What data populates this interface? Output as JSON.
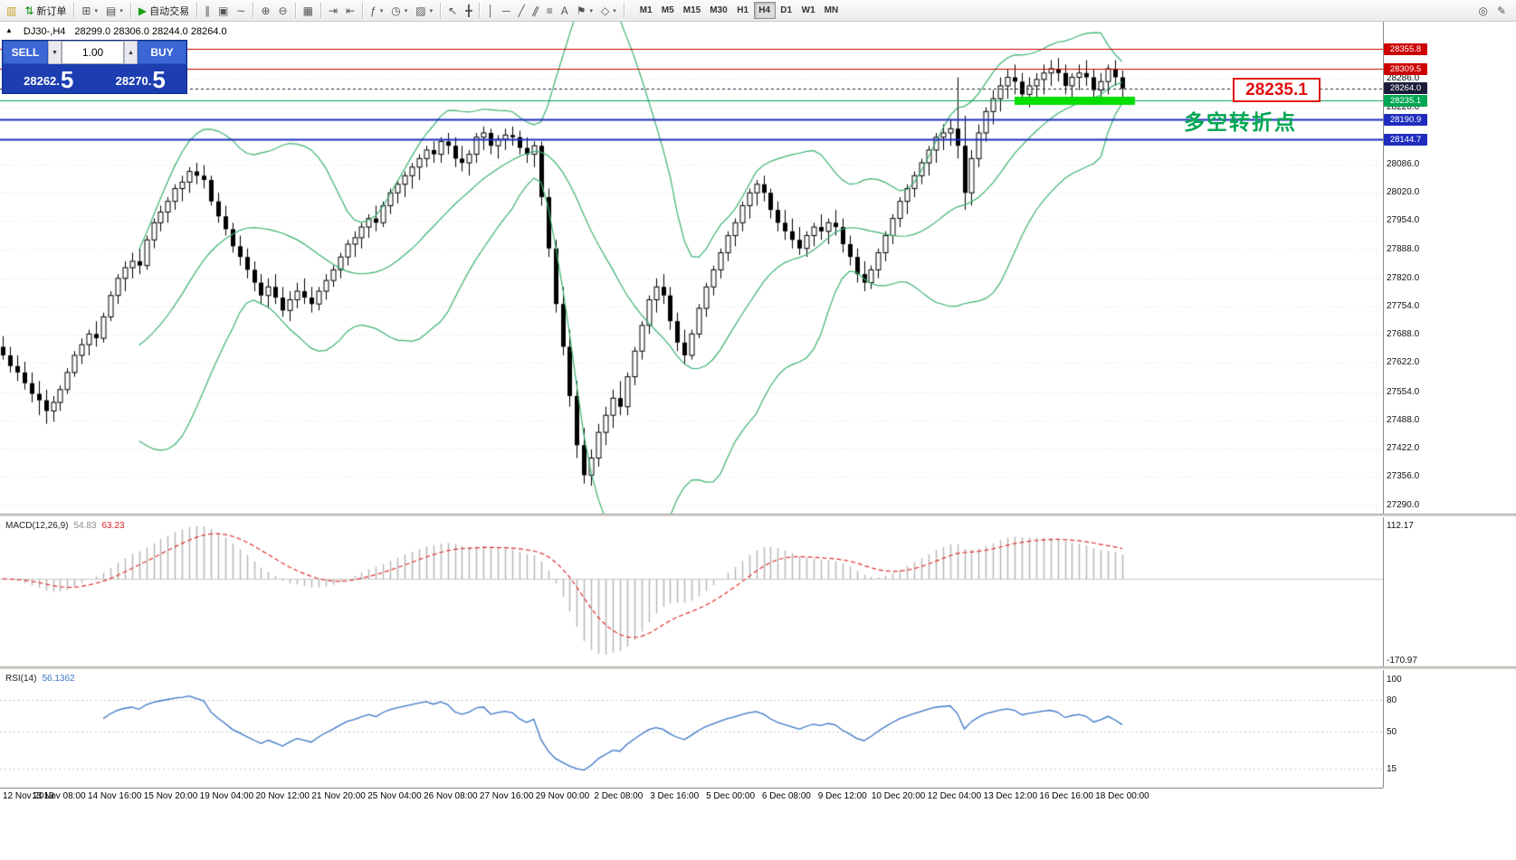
{
  "toolbar": {
    "items": [
      {
        "n": "app-button",
        "g": "▥",
        "c": "#c9a227"
      },
      {
        "n": "new-order-button",
        "g": "⇅",
        "c": "#0a8a0a",
        "l": "新订单"
      },
      {
        "s": 1
      },
      {
        "n": "new-chart-button",
        "g": "⊞",
        "caret": 1
      },
      {
        "n": "profiles-button",
        "g": "▤",
        "caret": 1
      },
      {
        "s": 1
      },
      {
        "n": "autotrading-button",
        "g": "▶",
        "c": "#18a018",
        "l": "自动交易"
      },
      {
        "s": 1
      },
      {
        "n": "bar-chart-button",
        "g": "∥"
      },
      {
        "n": "candlestick-chart-button",
        "g": "▣"
      },
      {
        "n": "line-chart-button",
        "g": "∼"
      },
      {
        "s": 1
      },
      {
        "n": "zoom-in-button",
        "g": "⊕"
      },
      {
        "n": "zoom-out-button",
        "g": "⊖"
      },
      {
        "s": 1
      },
      {
        "n": "tile-windows-button",
        "g": "▦"
      },
      {
        "s": 1
      },
      {
        "n": "auto-scroll-button",
        "g": "⇥"
      },
      {
        "n": "chart-shift-button",
        "g": "⇤"
      },
      {
        "s": 1
      },
      {
        "n": "indicators-button",
        "g": "ƒ",
        "caret": 1
      },
      {
        "n": "periods-button",
        "g": "◷",
        "caret": 1
      },
      {
        "n": "templates-button",
        "g": "▨",
        "caret": 1
      },
      {
        "s": 1
      },
      {
        "n": "cursor-button",
        "g": "↖"
      },
      {
        "n": "crosshair-button",
        "g": "╋"
      },
      {
        "s": 1
      },
      {
        "n": "vertical-line-button",
        "g": "│"
      },
      {
        "n": "horizontal-line-button",
        "g": "─"
      },
      {
        "n": "trendline-button",
        "g": "╱"
      },
      {
        "n": "channel-button",
        "g": "∥",
        "rot": 1
      },
      {
        "n": "fibonacci-button",
        "g": "≡"
      },
      {
        "n": "text-button",
        "g": "A"
      },
      {
        "n": "arrows-button",
        "g": "⚑",
        "caret": 1
      },
      {
        "n": "shapes-button",
        "g": "◇",
        "caret": 1
      },
      {
        "s": 1
      }
    ],
    "timeframes": {
      "options": [
        "M1",
        "M5",
        "M15",
        "M30",
        "H1",
        "H4",
        "D1",
        "W1",
        "MN"
      ],
      "active": "H4"
    },
    "right_items": [
      {
        "n": "search-button",
        "icon": "search-icon",
        "g": "◎"
      },
      {
        "n": "feedback-button",
        "icon": "pencil-icon",
        "g": "✎"
      }
    ]
  },
  "chart": {
    "symbol_title": "DJ30-,H4",
    "ohlc": "28299.0 28306.0 28244.0 28264.0"
  },
  "trade_panel": {
    "sell_label": "SELL",
    "buy_label": "BUY",
    "volume": "1.00",
    "sell_price_main": "28262.",
    "sell_price_big": "5",
    "buy_price_main": "28270.",
    "buy_price_big": "5"
  },
  "price_axis": {
    "ticks": [
      "28286.0",
      "28220.0",
      "28086.0",
      "28020.0",
      "27954.0",
      "27888.0",
      "27820.0",
      "27754.0",
      "27688.0",
      "27622.0",
      "27554.0",
      "27488.0",
      "27422.0",
      "27356.0",
      "27290.0"
    ]
  },
  "levels": [
    {
      "label": "28355.8",
      "price": 28355.8,
      "color": "#cc0000",
      "thickness": 1,
      "style": "solid",
      "role": "resistance"
    },
    {
      "label": "28309.5",
      "price": 28309.5,
      "color": "#cc0000",
      "thickness": 1,
      "style": "solid",
      "role": "resistance"
    },
    {
      "label": "28264.0",
      "price": 28264.0,
      "color": "#1c1c3a",
      "thickness": 1,
      "style": "dashed",
      "role": "last-price"
    },
    {
      "label": "28235.1",
      "price": 28235.1,
      "color": "#00a651",
      "thickness": 1,
      "style": "solid",
      "role": "pivot"
    },
    {
      "label": "28190.9",
      "price": 28190.9,
      "color": "#1f2dbe",
      "thickness": 2,
      "style": "solid",
      "role": "support"
    },
    {
      "label": "28144.7",
      "price": 28144.7,
      "color": "#1f2dbe",
      "thickness": 2,
      "style": "solid",
      "role": "support"
    }
  ],
  "annotations": {
    "pivot_price": "28235.1",
    "pivot_text": "多空转折点",
    "highlight_color": "#00dd00",
    "pivot_color": "#e01010",
    "pivot_text_color": "#00a651"
  },
  "macd_panel": {
    "title": "MACD(12,26,9)",
    "value_main": "54.83",
    "value_signal": "63.23",
    "axis_max": "112.17",
    "axis_min": "-170.97"
  },
  "rsi_panel": {
    "title": "RSI(14)",
    "value": "56.1362",
    "axis_labels": [
      100,
      80,
      50,
      15
    ],
    "levels": [
      80,
      50,
      15
    ]
  },
  "time_axis": {
    "labels": [
      "12 Nov 2019",
      "13 Nov 08:00",
      "14 Nov 16:00",
      "15 Nov 20:00",
      "19 Nov 04:00",
      "20 Nov 12:00",
      "21 Nov 20:00",
      "25 Nov 04:00",
      "26 Nov 08:00",
      "27 Nov 16:00",
      "29 Nov 00:00",
      "2 Dec 08:00",
      "3 Dec 16:00",
      "5 Dec 00:00",
      "6 Dec 08:00",
      "9 Dec 12:00",
      "10 Dec 20:00",
      "12 Dec 04:00",
      "13 Dec 12:00",
      "16 Dec 16:00",
      "18 Dec 00:00"
    ]
  },
  "chart_data": {
    "type": "candlestick",
    "symbol": "DJ30-",
    "timeframe": "H4",
    "ylim": [
      27270,
      28420
    ],
    "indicators": {
      "bollinger": {
        "period": 20,
        "deviation": 2
      },
      "macd": {
        "fast": 12,
        "slow": 26,
        "signal": 9
      },
      "rsi": {
        "period": 14
      }
    },
    "candles": [
      [
        27660,
        27685,
        27630,
        27640
      ],
      [
        27640,
        27660,
        27600,
        27615
      ],
      [
        27615,
        27640,
        27580,
        27600
      ],
      [
        27600,
        27625,
        27560,
        27575
      ],
      [
        27575,
        27600,
        27530,
        27550
      ],
      [
        27550,
        27580,
        27500,
        27535
      ],
      [
        27535,
        27560,
        27480,
        27510
      ],
      [
        27510,
        27545,
        27485,
        27530
      ],
      [
        27530,
        27570,
        27510,
        27560
      ],
      [
        27560,
        27610,
        27550,
        27600
      ],
      [
        27600,
        27650,
        27590,
        27640
      ],
      [
        27640,
        27680,
        27620,
        27665
      ],
      [
        27665,
        27700,
        27640,
        27690
      ],
      [
        27690,
        27720,
        27660,
        27680
      ],
      [
        27680,
        27740,
        27670,
        27730
      ],
      [
        27730,
        27790,
        27720,
        27780
      ],
      [
        27780,
        27830,
        27760,
        27820
      ],
      [
        27820,
        27860,
        27790,
        27845
      ],
      [
        27845,
        27880,
        27820,
        27860
      ],
      [
        27860,
        27890,
        27830,
        27850
      ],
      [
        27850,
        27920,
        27840,
        27910
      ],
      [
        27910,
        27960,
        27890,
        27950
      ],
      [
        27950,
        27990,
        27930,
        27975
      ],
      [
        27975,
        28010,
        27950,
        28000
      ],
      [
        28000,
        28040,
        27980,
        28030
      ],
      [
        28030,
        28060,
        28000,
        28045
      ],
      [
        28045,
        28080,
        28020,
        28070
      ],
      [
        28070,
        28090,
        28040,
        28060
      ],
      [
        28060,
        28085,
        28030,
        28050
      ],
      [
        28050,
        28060,
        27990,
        28000
      ],
      [
        28000,
        28020,
        27950,
        27965
      ],
      [
        27965,
        27990,
        27920,
        27935
      ],
      [
        27935,
        27950,
        27880,
        27895
      ],
      [
        27895,
        27920,
        27850,
        27870
      ],
      [
        27870,
        27890,
        27820,
        27840
      ],
      [
        27840,
        27860,
        27790,
        27810
      ],
      [
        27810,
        27830,
        27760,
        27780
      ],
      [
        27780,
        27820,
        27750,
        27800
      ],
      [
        27800,
        27830,
        27760,
        27775
      ],
      [
        27775,
        27800,
        27730,
        27745
      ],
      [
        27745,
        27790,
        27720,
        27770
      ],
      [
        27770,
        27810,
        27750,
        27790
      ],
      [
        27790,
        27820,
        27760,
        27775
      ],
      [
        27775,
        27800,
        27740,
        27760
      ],
      [
        27760,
        27800,
        27745,
        27790
      ],
      [
        27790,
        27830,
        27770,
        27815
      ],
      [
        27815,
        27850,
        27800,
        27840
      ],
      [
        27840,
        27880,
        27820,
        27870
      ],
      [
        27870,
        27910,
        27850,
        27900
      ],
      [
        27900,
        27930,
        27870,
        27915
      ],
      [
        27915,
        27950,
        27890,
        27940
      ],
      [
        27940,
        27970,
        27915,
        27960
      ],
      [
        27960,
        27990,
        27930,
        27950
      ],
      [
        27950,
        28000,
        27940,
        27990
      ],
      [
        27990,
        28030,
        27970,
        28020
      ],
      [
        28020,
        28050,
        27995,
        28040
      ],
      [
        28040,
        28070,
        28010,
        28060
      ],
      [
        28060,
        28090,
        28030,
        28080
      ],
      [
        28080,
        28110,
        28050,
        28100
      ],
      [
        28100,
        28130,
        28080,
        28120
      ],
      [
        28120,
        28140,
        28090,
        28110
      ],
      [
        28110,
        28150,
        28090,
        28140
      ],
      [
        28140,
        28160,
        28110,
        28130
      ],
      [
        28130,
        28150,
        28080,
        28100
      ],
      [
        28100,
        28130,
        28070,
        28090
      ],
      [
        28090,
        28120,
        28060,
        28110
      ],
      [
        28110,
        28160,
        28090,
        28150
      ],
      [
        28150,
        28175,
        28120,
        28160
      ],
      [
        28160,
        28170,
        28110,
        28130
      ],
      [
        28130,
        28155,
        28100,
        28145
      ],
      [
        28145,
        28170,
        28120,
        28155
      ],
      [
        28155,
        28175,
        28130,
        28150
      ],
      [
        28150,
        28165,
        28110,
        28125
      ],
      [
        28125,
        28150,
        28090,
        28110
      ],
      [
        28110,
        28140,
        28080,
        28130
      ],
      [
        28130,
        28140,
        27990,
        28010
      ],
      [
        28010,
        28030,
        27870,
        27890
      ],
      [
        27890,
        27910,
        27740,
        27760
      ],
      [
        27760,
        27800,
        27640,
        27660
      ],
      [
        27660,
        27700,
        27520,
        27545
      ],
      [
        27545,
        27580,
        27400,
        27430
      ],
      [
        27430,
        27470,
        27340,
        27360
      ],
      [
        27360,
        27420,
        27335,
        27400
      ],
      [
        27400,
        27480,
        27380,
        27460
      ],
      [
        27460,
        27520,
        27430,
        27500
      ],
      [
        27500,
        27560,
        27470,
        27540
      ],
      [
        27540,
        27580,
        27500,
        27520
      ],
      [
        27520,
        27600,
        27500,
        27590
      ],
      [
        27590,
        27660,
        27570,
        27650
      ],
      [
        27650,
        27720,
        27630,
        27710
      ],
      [
        27710,
        27780,
        27690,
        27770
      ],
      [
        27770,
        27820,
        27740,
        27800
      ],
      [
        27800,
        27830,
        27760,
        27780
      ],
      [
        27780,
        27800,
        27700,
        27720
      ],
      [
        27720,
        27740,
        27650,
        27670
      ],
      [
        27670,
        27700,
        27620,
        27640
      ],
      [
        27640,
        27700,
        27630,
        27690
      ],
      [
        27690,
        27760,
        27680,
        27750
      ],
      [
        27750,
        27810,
        27730,
        27800
      ],
      [
        27800,
        27850,
        27780,
        27840
      ],
      [
        27840,
        27890,
        27820,
        27880
      ],
      [
        27880,
        27930,
        27860,
        27920
      ],
      [
        27920,
        27960,
        27895,
        27950
      ],
      [
        27950,
        28000,
        27930,
        27990
      ],
      [
        27990,
        28030,
        27960,
        28020
      ],
      [
        28020,
        28050,
        27990,
        28040
      ],
      [
        28040,
        28060,
        28000,
        28020
      ],
      [
        28020,
        28030,
        27960,
        27980
      ],
      [
        27980,
        28000,
        27930,
        27950
      ],
      [
        27950,
        27980,
        27910,
        27930
      ],
      [
        27930,
        27960,
        27890,
        27910
      ],
      [
        27910,
        27940,
        27875,
        27890
      ],
      [
        27890,
        27930,
        27870,
        27920
      ],
      [
        27920,
        27950,
        27895,
        27940
      ],
      [
        27940,
        27970,
        27910,
        27930
      ],
      [
        27930,
        27960,
        27900,
        27950
      ],
      [
        27950,
        27980,
        27920,
        27940
      ],
      [
        27940,
        27960,
        27880,
        27900
      ],
      [
        27900,
        27920,
        27850,
        27870
      ],
      [
        27870,
        27890,
        27810,
        27830
      ],
      [
        27830,
        27860,
        27790,
        27810
      ],
      [
        27810,
        27850,
        27795,
        27840
      ],
      [
        27840,
        27890,
        27820,
        27880
      ],
      [
        27880,
        27930,
        27860,
        27920
      ],
      [
        27920,
        27970,
        27900,
        27960
      ],
      [
        27960,
        28010,
        27940,
        28000
      ],
      [
        28000,
        28040,
        27970,
        28030
      ],
      [
        28030,
        28070,
        28010,
        28060
      ],
      [
        28060,
        28100,
        28040,
        28090
      ],
      [
        28090,
        28130,
        28060,
        28120
      ],
      [
        28120,
        28160,
        28090,
        28150
      ],
      [
        28150,
        28180,
        28120,
        28160
      ],
      [
        28160,
        28190,
        28130,
        28170
      ],
      [
        28170,
        28290,
        28100,
        28130
      ],
      [
        28130,
        28200,
        27980,
        28020
      ],
      [
        28020,
        28120,
        27990,
        28100
      ],
      [
        28100,
        28180,
        28080,
        28160
      ],
      [
        28160,
        28220,
        28140,
        28210
      ],
      [
        28210,
        28260,
        28180,
        28240
      ],
      [
        28240,
        28290,
        28210,
        28270
      ],
      [
        28270,
        28310,
        28240,
        28290
      ],
      [
        28290,
        28320,
        28250,
        28280
      ],
      [
        28280,
        28300,
        28230,
        28250
      ],
      [
        28250,
        28290,
        28220,
        28270
      ],
      [
        28270,
        28300,
        28240,
        28285
      ],
      [
        28285,
        28320,
        28250,
        28300
      ],
      [
        28300,
        28330,
        28270,
        28310
      ],
      [
        28310,
        28335,
        28280,
        28300
      ],
      [
        28300,
        28320,
        28250,
        28270
      ],
      [
        28270,
        28300,
        28230,
        28290
      ],
      [
        28290,
        28320,
        28260,
        28300
      ],
      [
        28300,
        28330,
        28270,
        28290
      ],
      [
        28290,
        28310,
        28240,
        28260
      ],
      [
        28260,
        28300,
        28230,
        28280
      ],
      [
        28280,
        28320,
        28250,
        28310
      ],
      [
        28310,
        28330,
        28270,
        28290
      ],
      [
        28290,
        28306,
        28244,
        28264
      ]
    ]
  }
}
